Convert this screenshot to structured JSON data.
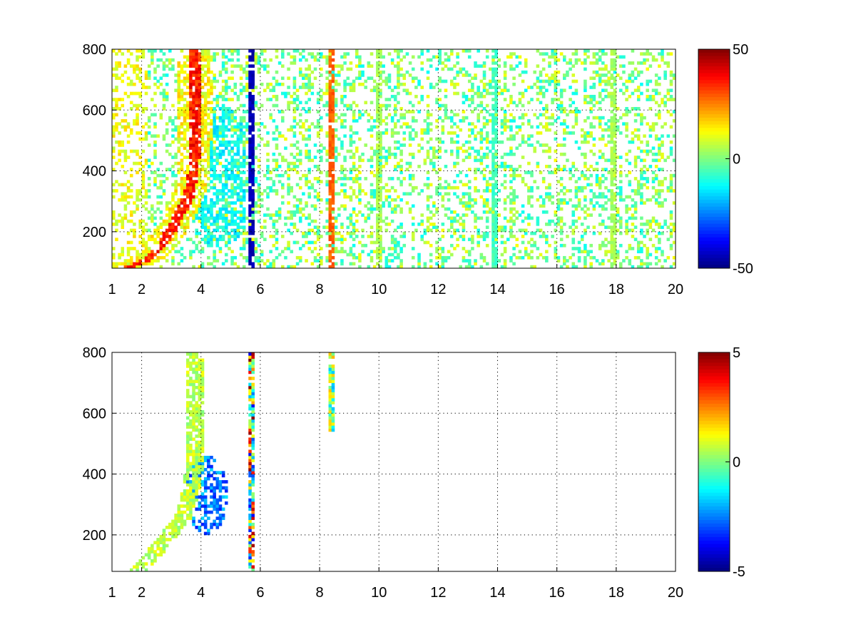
{
  "chart_data": [
    {
      "type": "heatmap",
      "title": "",
      "xlabel": "",
      "ylabel": "",
      "xlim": [
        1,
        20
      ],
      "ylim": [
        80,
        800
      ],
      "xticks": [
        1,
        2,
        4,
        6,
        8,
        10,
        12,
        14,
        16,
        18,
        20
      ],
      "xtick_labels": [
        "1",
        "2",
        "4",
        "6",
        "8",
        "10",
        "12",
        "14",
        "16",
        "18",
        "20"
      ],
      "yticks": [
        200,
        400,
        600,
        800
      ],
      "ytick_labels": [
        "200",
        "400",
        "600",
        "800"
      ],
      "grid": true,
      "colormap": "jet",
      "colorbar": {
        "range": [
          -50,
          50
        ],
        "ticks": [
          50,
          0,
          -50
        ],
        "tick_labels": [
          "50",
          "0",
          "-50"
        ]
      },
      "features": {
        "ridge": {
          "points": [
            [
              1.5,
              80
            ],
            [
              2.2,
              110
            ],
            [
              2.7,
              160
            ],
            [
              3.0,
              210
            ],
            [
              3.3,
              260
            ],
            [
              3.6,
              320
            ],
            [
              3.75,
              400
            ],
            [
              3.8,
              500
            ],
            [
              3.8,
              650
            ],
            [
              3.8,
              800
            ]
          ],
          "value": 38
        },
        "warm_band": {
          "x_range": [
            1.0,
            2.2
          ],
          "value": 12
        },
        "cool_cloud": {
          "center": [
            4.6,
            380
          ],
          "value": -12
        },
        "lines": [
          {
            "x": 5.7,
            "value": -45
          },
          {
            "x": 8.4,
            "value": 28
          },
          {
            "x": 10.0,
            "value": 4
          },
          {
            "x": 13.9,
            "value": -6
          },
          {
            "x": 17.9,
            "value": 4
          }
        ],
        "scatter_density_beyond_6": 0.27,
        "scatter_value_range": [
          -12,
          12
        ]
      }
    },
    {
      "type": "heatmap",
      "title": "",
      "xlabel": "",
      "ylabel": "",
      "xlim": [
        1,
        20
      ],
      "ylim": [
        80,
        800
      ],
      "xticks": [
        1,
        2,
        4,
        6,
        8,
        10,
        12,
        14,
        16,
        18,
        20
      ],
      "xtick_labels": [
        "1",
        "2",
        "4",
        "6",
        "8",
        "10",
        "12",
        "14",
        "16",
        "18",
        "20"
      ],
      "yticks": [
        200,
        400,
        600,
        800
      ],
      "ytick_labels": [
        "200",
        "400",
        "600",
        "800"
      ],
      "grid": true,
      "colormap": "jet",
      "colorbar": {
        "range": [
          -5,
          5
        ],
        "ticks": [
          5,
          0,
          -5
        ],
        "tick_labels": [
          "5",
          "0",
          "-5"
        ]
      },
      "features": {
        "ridge": {
          "points": [
            [
              1.9,
              80
            ],
            [
              2.5,
              150
            ],
            [
              3.0,
              210
            ],
            [
              3.4,
              260
            ],
            [
              3.6,
              320
            ],
            [
              3.75,
              400
            ],
            [
              3.8,
              550
            ],
            [
              3.8,
              800
            ]
          ],
          "value": 0.6
        },
        "cool_cloud": {
          "center": [
            4.2,
            330
          ],
          "value": -2.5
        },
        "lines": [
          {
            "x": 5.7,
            "y_range": [
              80,
              800
            ],
            "value_range": [
              -4,
              5
            ]
          },
          {
            "x": 8.4,
            "y_range": [
              540,
              800
            ],
            "value_range": [
              -2,
              2
            ]
          }
        ]
      }
    }
  ]
}
